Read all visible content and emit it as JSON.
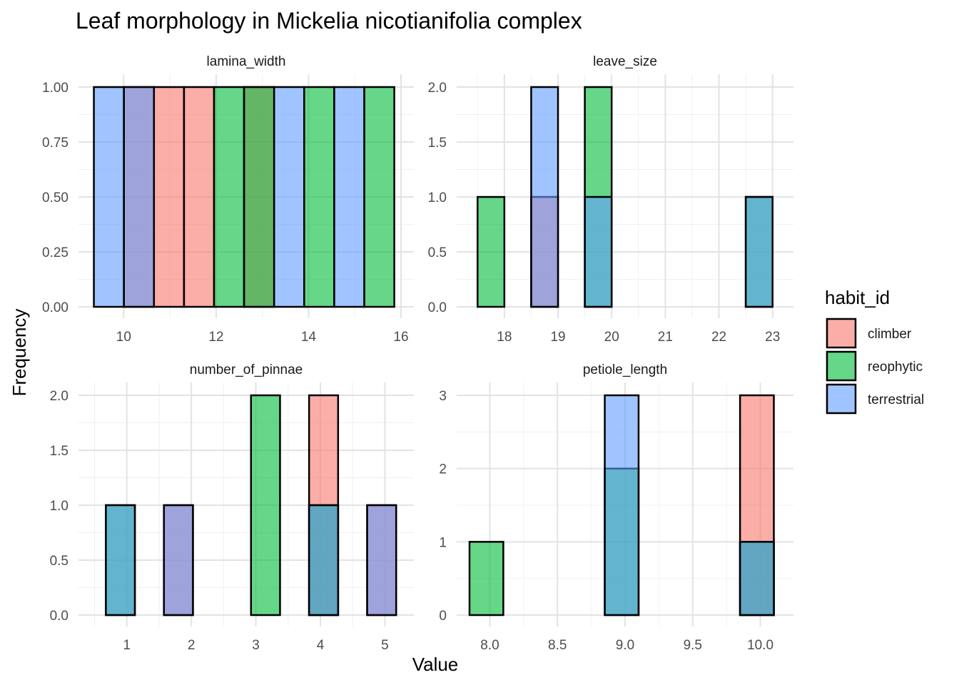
{
  "chart_data": {
    "type": "bar",
    "title": "Leaf morphology in Mickelia nicotianifolia complex",
    "xlabel": "Value",
    "ylabel": "Frequency",
    "legend": {
      "title": "habit_id",
      "position": "right",
      "entries": [
        {
          "label": "climber",
          "color": "#F8766D"
        },
        {
          "label": "reophytic",
          "color": "#00BA38"
        },
        {
          "label": "terrestrial",
          "color": "#619CFF"
        }
      ]
    },
    "fill_alpha": 0.6,
    "grid": true,
    "facets": [
      {
        "name": "lamina_width",
        "xlim": [
          9.3,
          16
        ],
        "ylim": [
          0,
          1
        ],
        "x_ticks": [
          10,
          12,
          14,
          16
        ],
        "x_tick_labels": [
          "10",
          "12",
          "14",
          "16"
        ],
        "y_ticks": [
          0,
          0.25,
          0.5,
          0.75,
          1
        ],
        "y_tick_labels": [
          "0.00",
          "0.25",
          "0.50",
          "0.75",
          "1.00"
        ],
        "bin_width": 0.65,
        "bins": [
          {
            "center": 9.68,
            "counts": {
              "climber": 0,
              "reophytic": 0,
              "terrestrial": 1
            }
          },
          {
            "center": 10.33,
            "counts": {
              "climber": 1,
              "reophytic": 0,
              "terrestrial": 1
            }
          },
          {
            "center": 10.98,
            "counts": {
              "climber": 1,
              "reophytic": 0,
              "terrestrial": 0
            }
          },
          {
            "center": 11.63,
            "counts": {
              "climber": 1,
              "reophytic": 0,
              "terrestrial": 0
            }
          },
          {
            "center": 12.28,
            "counts": {
              "climber": 0,
              "reophytic": 1,
              "terrestrial": 0
            }
          },
          {
            "center": 12.93,
            "counts": {
              "climber": 1,
              "reophytic": 1,
              "terrestrial": 0
            }
          },
          {
            "center": 13.58,
            "counts": {
              "climber": 0,
              "reophytic": 0,
              "terrestrial": 1
            }
          },
          {
            "center": 14.23,
            "counts": {
              "climber": 0,
              "reophytic": 1,
              "terrestrial": 0
            }
          },
          {
            "center": 14.88,
            "counts": {
              "climber": 0,
              "reophytic": 0,
              "terrestrial": 1
            }
          },
          {
            "center": 15.53,
            "counts": {
              "climber": 0,
              "reophytic": 1,
              "terrestrial": 0
            }
          }
        ]
      },
      {
        "name": "leave_size",
        "xlim": [
          17.35,
          23.15
        ],
        "ylim": [
          0,
          2
        ],
        "x_ticks": [
          18,
          19,
          20,
          21,
          22,
          23
        ],
        "x_tick_labels": [
          "18",
          "19",
          "20",
          "21",
          "22",
          "23"
        ],
        "y_ticks": [
          0,
          0.5,
          1,
          1.5,
          2
        ],
        "y_tick_labels": [
          "0.0",
          "0.5",
          "1.0",
          "1.5",
          "2.0"
        ],
        "bin_width": 0.5,
        "bins": [
          {
            "center": 17.75,
            "counts": {
              "climber": 0,
              "reophytic": 1,
              "terrestrial": 0
            }
          },
          {
            "center": 18.25,
            "counts": {
              "climber": 0,
              "reophytic": 0,
              "terrestrial": 0
            }
          },
          {
            "center": 18.75,
            "counts": {
              "climber": 1,
              "reophytic": 0,
              "terrestrial": 2
            }
          },
          {
            "center": 19.25,
            "counts": {
              "climber": 0,
              "reophytic": 0,
              "terrestrial": 0
            }
          },
          {
            "center": 19.75,
            "counts": {
              "climber": 0,
              "reophytic": 2,
              "terrestrial": 1
            }
          },
          {
            "center": 20.25,
            "counts": {
              "climber": 0,
              "reophytic": 0,
              "terrestrial": 0
            }
          },
          {
            "center": 20.75,
            "counts": {
              "climber": 0,
              "reophytic": 0,
              "terrestrial": 0
            }
          },
          {
            "center": 21.25,
            "counts": {
              "climber": 0,
              "reophytic": 0,
              "terrestrial": 0
            }
          },
          {
            "center": 21.75,
            "counts": {
              "climber": 0,
              "reophytic": 0,
              "terrestrial": 0
            }
          },
          {
            "center": 22.25,
            "counts": {
              "climber": 0,
              "reophytic": 0,
              "terrestrial": 0
            }
          },
          {
            "center": 22.75,
            "counts": {
              "climber": 0,
              "reophytic": 1,
              "terrestrial": 1
            }
          }
        ]
      },
      {
        "name": "number_of_pinnae",
        "xlim": [
          0.45,
          5.25
        ],
        "ylim": [
          0,
          2
        ],
        "x_ticks": [
          1,
          2,
          3,
          4,
          5
        ],
        "x_tick_labels": [
          "1",
          "2",
          "3",
          "4",
          "5"
        ],
        "y_ticks": [
          0,
          0.5,
          1,
          1.5,
          2
        ],
        "y_tick_labels": [
          "0.0",
          "0.5",
          "1.0",
          "1.5",
          "2.0"
        ],
        "bin_width": 0.45,
        "bins": [
          {
            "center": 0.9,
            "counts": {
              "climber": 0,
              "reophytic": 1,
              "terrestrial": 1
            }
          },
          {
            "center": 1.35,
            "counts": {
              "climber": 0,
              "reophytic": 0,
              "terrestrial": 0
            }
          },
          {
            "center": 1.8,
            "counts": {
              "climber": 1,
              "reophytic": 0,
              "terrestrial": 1
            }
          },
          {
            "center": 2.25,
            "counts": {
              "climber": 0,
              "reophytic": 0,
              "terrestrial": 0
            }
          },
          {
            "center": 2.7,
            "counts": {
              "climber": 0,
              "reophytic": 0,
              "terrestrial": 0
            }
          },
          {
            "center": 3.15,
            "counts": {
              "climber": 0,
              "reophytic": 2,
              "terrestrial": 0
            }
          },
          {
            "center": 3.6,
            "counts": {
              "climber": 0,
              "reophytic": 0,
              "terrestrial": 0
            }
          },
          {
            "center": 4.05,
            "counts": {
              "climber": 2,
              "reophytic": 1,
              "terrestrial": 1
            }
          },
          {
            "center": 4.5,
            "counts": {
              "climber": 0,
              "reophytic": 0,
              "terrestrial": 0
            }
          },
          {
            "center": 4.95,
            "counts": {
              "climber": 1,
              "reophytic": 0,
              "terrestrial": 1
            }
          }
        ]
      },
      {
        "name": "petiole_length",
        "xlim": [
          7.85,
          10.15
        ],
        "ylim": [
          0,
          3
        ],
        "x_ticks": [
          8.0,
          8.5,
          9.0,
          9.5,
          10.0
        ],
        "x_tick_labels": [
          "8.0",
          "8.5",
          "9.0",
          "9.5",
          "10.0"
        ],
        "y_ticks": [
          0,
          1,
          2,
          3
        ],
        "y_tick_labels": [
          "0",
          "1",
          "2",
          "3"
        ],
        "bin_width": 0.25,
        "bins": [
          {
            "center": 7.975,
            "counts": {
              "climber": 0,
              "reophytic": 1,
              "terrestrial": 0
            }
          },
          {
            "center": 8.225,
            "counts": {
              "climber": 0,
              "reophytic": 0,
              "terrestrial": 0
            }
          },
          {
            "center": 8.475,
            "counts": {
              "climber": 0,
              "reophytic": 0,
              "terrestrial": 0
            }
          },
          {
            "center": 8.725,
            "counts": {
              "climber": 0,
              "reophytic": 0,
              "terrestrial": 0
            }
          },
          {
            "center": 8.975,
            "counts": {
              "climber": 0,
              "reophytic": 2,
              "terrestrial": 3
            }
          },
          {
            "center": 9.225,
            "counts": {
              "climber": 0,
              "reophytic": 0,
              "terrestrial": 0
            }
          },
          {
            "center": 9.475,
            "counts": {
              "climber": 0,
              "reophytic": 0,
              "terrestrial": 0
            }
          },
          {
            "center": 9.725,
            "counts": {
              "climber": 0,
              "reophytic": 0,
              "terrestrial": 0
            }
          },
          {
            "center": 9.975,
            "counts": {
              "climber": 3,
              "reophytic": 1,
              "terrestrial": 1
            }
          }
        ]
      }
    ]
  }
}
